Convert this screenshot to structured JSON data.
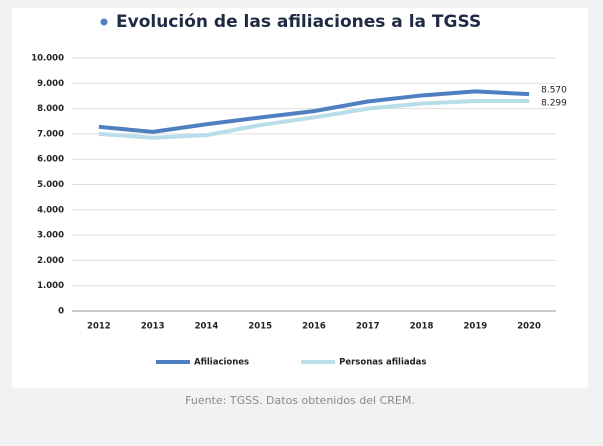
{
  "chart_data": {
    "type": "line",
    "title": "Evolución de las afiliaciones a la TGSS",
    "categories": [
      "2012",
      "2013",
      "2014",
      "2015",
      "2016",
      "2017",
      "2018",
      "2019",
      "2020"
    ],
    "series": [
      {
        "name": "Afiliaciones",
        "color": "#4f7fbf",
        "values": [
          7280,
          7080,
          7380,
          7650,
          7900,
          8280,
          8520,
          8680,
          8570
        ],
        "value_labels": [
          null,
          null,
          null,
          null,
          null,
          null,
          null,
          null,
          "8.570"
        ]
      },
      {
        "name": "Personas afiliadas",
        "color": "#b9dde9",
        "values": [
          7000,
          6850,
          6950,
          7350,
          7650,
          8000,
          8200,
          8300,
          8299
        ],
        "value_labels": [
          null,
          null,
          null,
          null,
          null,
          null,
          null,
          null,
          "8.299"
        ]
      }
    ],
    "ylim": [
      0,
      10000
    ],
    "yticks": [
      0,
      {
        "value": 1000,
        "label": "1.000"
      },
      {
        "value": 2000,
        "label": "2.000"
      },
      {
        "value": 3000,
        "label": "3.000"
      },
      {
        "value": 4000,
        "label": "4.000"
      },
      {
        "value": 5000,
        "label": "5.000"
      },
      {
        "value": 6000,
        "label": "6.000"
      },
      {
        "value": 7000,
        "label": "7.000"
      },
      {
        "value": 8000,
        "label": "8.000"
      },
      {
        "value": 9000,
        "label": "9.000"
      },
      {
        "value": 10000,
        "label": "10.000"
      }
    ],
    "grid": true,
    "legend": "bottom",
    "source": "Fuente: TGSS. Datos obtenidos del CREM."
  }
}
